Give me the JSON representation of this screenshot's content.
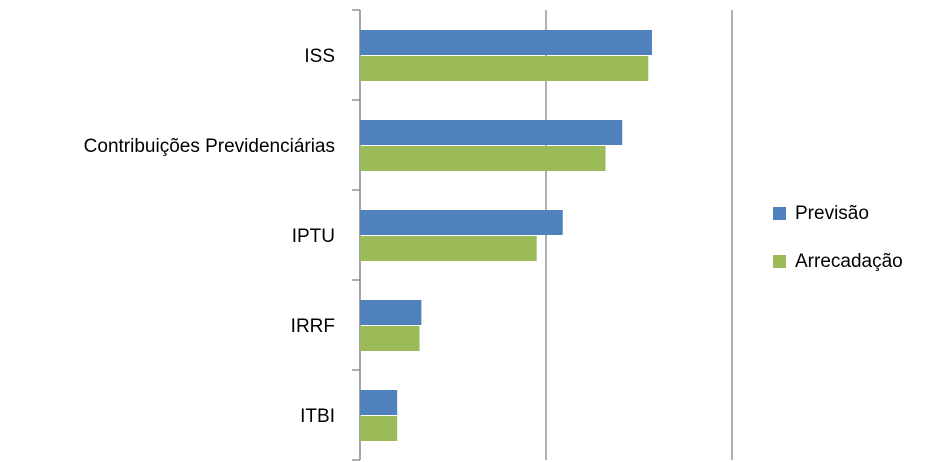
{
  "chart_data": {
    "type": "hbar",
    "categories": [
      "ISS",
      "Contribuições Previdenciárias",
      "IPTU",
      "IRRF",
      "ITBI"
    ],
    "series": [
      {
        "name": "Previsão",
        "color": "#4f81bd",
        "values": [
          1.57,
          1.41,
          1.09,
          0.33,
          0.2
        ]
      },
      {
        "name": "Arrecadação",
        "color": "#9bbb59",
        "values": [
          1.55,
          1.32,
          0.95,
          0.32,
          0.2
        ]
      }
    ],
    "xlim": [
      0,
      2
    ],
    "xticks": [
      0,
      1,
      2
    ],
    "grid": true,
    "tick_labels": false,
    "legend": "right"
  }
}
